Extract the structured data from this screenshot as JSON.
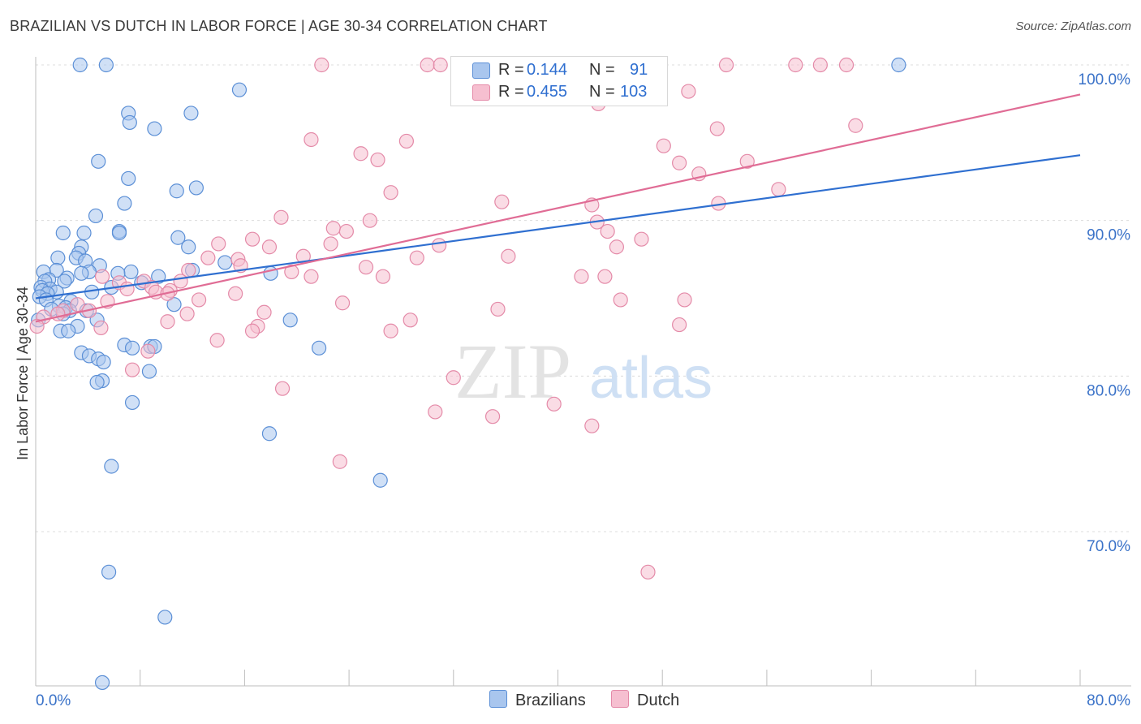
{
  "header": {
    "title": "BRAZILIAN VS DUTCH IN LABOR FORCE | AGE 30-34 CORRELATION CHART",
    "source": "Source: ZipAtlas.com"
  },
  "legend": {
    "rows": [
      {
        "r_label": "R =",
        "r_value": "0.144",
        "n_label": "N =",
        "n_value": "91"
      },
      {
        "r_label": "R =",
        "r_value": "0.455",
        "n_label": "N =",
        "n_value": "103"
      }
    ]
  },
  "watermark": {
    "zip": "ZIP",
    "atlas": "atlas"
  },
  "colors": {
    "brazilians_fill": "#a9c6ee",
    "brazilians_stroke": "#5b8fd6",
    "brazilians_line": "#2f6fd0",
    "dutch_fill": "#f6bfd0",
    "dutch_stroke": "#e48aa8",
    "dutch_line": "#e06c95",
    "tick_label": "#3a72c8"
  },
  "chart_data": {
    "type": "scatter",
    "title": "BRAZILIAN VS DUTCH IN LABOR FORCE | AGE 30-34 CORRELATION CHART",
    "xlabel": "",
    "ylabel": "In Labor Force | Age 30-34",
    "xlim": [
      0,
      80
    ],
    "ylim": [
      60,
      102
    ],
    "x_ticks": [
      "0.0%",
      "80.0%"
    ],
    "y_ticks": [
      {
        "value": 70,
        "label": "70.0%"
      },
      {
        "value": 80,
        "label": "80.0%"
      },
      {
        "value": 90,
        "label": "90.0%"
      },
      {
        "value": 100,
        "label": "100.0%"
      }
    ],
    "grid": true,
    "legend_position": "top-center",
    "series": [
      {
        "name": "Brazilians",
        "r": 0.144,
        "n": 91,
        "trend": {
          "x": [
            0,
            80
          ],
          "y": [
            85.0,
            94.2
          ]
        },
        "points": [
          [
            3.4,
            100
          ],
          [
            5.4,
            100
          ],
          [
            66.1,
            100
          ],
          [
            15.6,
            98.4
          ],
          [
            7.1,
            96.9
          ],
          [
            11.9,
            96.9
          ],
          [
            7.2,
            96.3
          ],
          [
            9.1,
            95.9
          ],
          [
            4.8,
            93.8
          ],
          [
            7.1,
            92.7
          ],
          [
            12.3,
            92.1
          ],
          [
            10.8,
            91.9
          ],
          [
            6.8,
            91.1
          ],
          [
            4.6,
            90.3
          ],
          [
            6.4,
            89.3
          ],
          [
            6.4,
            89.2
          ],
          [
            2.1,
            89.2
          ],
          [
            3.7,
            89.2
          ],
          [
            10.9,
            88.9
          ],
          [
            11.7,
            88.3
          ],
          [
            3.5,
            88.3
          ],
          [
            3.3,
            87.9
          ],
          [
            1.7,
            87.6
          ],
          [
            3.1,
            87.6
          ],
          [
            3.8,
            87.4
          ],
          [
            14.5,
            87.3
          ],
          [
            4.9,
            87.1
          ],
          [
            1.6,
            86.8
          ],
          [
            12.0,
            86.8
          ],
          [
            0.6,
            86.7
          ],
          [
            4.1,
            86.7
          ],
          [
            7.3,
            86.7
          ],
          [
            3.5,
            86.6
          ],
          [
            6.3,
            86.6
          ],
          [
            18.0,
            86.6
          ],
          [
            9.4,
            86.4
          ],
          [
            2.4,
            86.3
          ],
          [
            1.0,
            86.2
          ],
          [
            2.2,
            86.1
          ],
          [
            0.7,
            86.1
          ],
          [
            8.1,
            86.0
          ],
          [
            0.4,
            85.7
          ],
          [
            1.1,
            85.6
          ],
          [
            5.8,
            85.7
          ],
          [
            0.5,
            85.5
          ],
          [
            4.3,
            85.4
          ],
          [
            1.6,
            85.4
          ],
          [
            0.9,
            85.3
          ],
          [
            0.3,
            85.1
          ],
          [
            0.8,
            84.9
          ],
          [
            2.7,
            84.8
          ],
          [
            10.6,
            84.6
          ],
          [
            1.8,
            84.5
          ],
          [
            2.3,
            84.4
          ],
          [
            1.2,
            84.3
          ],
          [
            2.6,
            84.2
          ],
          [
            3.9,
            84.2
          ],
          [
            2.1,
            84.0
          ],
          [
            0.2,
            83.6
          ],
          [
            4.7,
            83.6
          ],
          [
            19.5,
            83.6
          ],
          [
            3.2,
            83.2
          ],
          [
            1.9,
            82.9
          ],
          [
            2.5,
            82.9
          ],
          [
            6.8,
            82.0
          ],
          [
            8.8,
            81.9
          ],
          [
            9.1,
            81.9
          ],
          [
            7.4,
            81.8
          ],
          [
            21.7,
            81.8
          ],
          [
            3.5,
            81.5
          ],
          [
            4.1,
            81.3
          ],
          [
            4.8,
            81.1
          ],
          [
            5.2,
            80.9
          ],
          [
            8.7,
            80.3
          ],
          [
            5.1,
            79.7
          ],
          [
            4.7,
            79.6
          ],
          [
            7.4,
            78.3
          ],
          [
            17.9,
            76.3
          ],
          [
            5.8,
            74.2
          ],
          [
            26.4,
            73.3
          ],
          [
            5.6,
            67.4
          ],
          [
            9.9,
            64.5
          ],
          [
            5.1,
            60.3
          ]
        ]
      },
      {
        "name": "Dutch",
        "r": 0.455,
        "n": 103,
        "trend": {
          "x": [
            0,
            80
          ],
          "y": [
            83.5,
            98.1
          ]
        },
        "points": [
          [
            21.9,
            100
          ],
          [
            30.0,
            100
          ],
          [
            31.0,
            100
          ],
          [
            32.4,
            100
          ],
          [
            42.4,
            100
          ],
          [
            52.9,
            100
          ],
          [
            58.2,
            100
          ],
          [
            60.1,
            100
          ],
          [
            62.1,
            100
          ],
          [
            43.1,
            97.5
          ],
          [
            50.0,
            98.3
          ],
          [
            62.8,
            96.1
          ],
          [
            52.2,
            95.9
          ],
          [
            21.1,
            95.2
          ],
          [
            28.4,
            95.1
          ],
          [
            24.9,
            94.3
          ],
          [
            26.2,
            93.9
          ],
          [
            48.1,
            94.8
          ],
          [
            49.3,
            93.7
          ],
          [
            54.5,
            93.8
          ],
          [
            50.8,
            93.0
          ],
          [
            56.9,
            92.0
          ],
          [
            27.2,
            91.8
          ],
          [
            35.7,
            91.2
          ],
          [
            42.6,
            91.0
          ],
          [
            52.3,
            91.1
          ],
          [
            18.8,
            90.2
          ],
          [
            25.6,
            90.0
          ],
          [
            43.0,
            89.9
          ],
          [
            22.8,
            89.5
          ],
          [
            23.8,
            89.3
          ],
          [
            43.8,
            89.3
          ],
          [
            16.6,
            88.8
          ],
          [
            14.0,
            88.5
          ],
          [
            30.9,
            88.4
          ],
          [
            17.9,
            88.3
          ],
          [
            22.6,
            88.5
          ],
          [
            44.5,
            88.3
          ],
          [
            46.4,
            88.8
          ],
          [
            13.2,
            87.6
          ],
          [
            15.5,
            87.5
          ],
          [
            20.5,
            87.7
          ],
          [
            29.2,
            87.6
          ],
          [
            36.2,
            87.7
          ],
          [
            15.7,
            87.1
          ],
          [
            25.3,
            87.0
          ],
          [
            11.7,
            86.8
          ],
          [
            19.6,
            86.7
          ],
          [
            26.6,
            86.4
          ],
          [
            21.1,
            86.4
          ],
          [
            41.8,
            86.4
          ],
          [
            43.6,
            86.4
          ],
          [
            8.3,
            86.1
          ],
          [
            5.1,
            86.4
          ],
          [
            6.4,
            86.0
          ],
          [
            11.1,
            86.1
          ],
          [
            8.9,
            85.7
          ],
          [
            10.3,
            85.5
          ],
          [
            7.0,
            85.6
          ],
          [
            9.2,
            85.4
          ],
          [
            10.1,
            85.3
          ],
          [
            15.3,
            85.3
          ],
          [
            12.5,
            84.9
          ],
          [
            5.5,
            84.8
          ],
          [
            44.8,
            84.9
          ],
          [
            49.7,
            84.9
          ],
          [
            23.5,
            84.7
          ],
          [
            35.4,
            84.3
          ],
          [
            3.2,
            84.6
          ],
          [
            2.1,
            84.2
          ],
          [
            4.1,
            84.2
          ],
          [
            1.7,
            84.0
          ],
          [
            0.6,
            83.8
          ],
          [
            11.6,
            84.0
          ],
          [
            17.5,
            84.1
          ],
          [
            10.1,
            83.5
          ],
          [
            28.7,
            83.6
          ],
          [
            5.0,
            83.1
          ],
          [
            17.0,
            83.2
          ],
          [
            16.6,
            82.9
          ],
          [
            27.2,
            82.9
          ],
          [
            49.3,
            83.3
          ],
          [
            13.9,
            82.3
          ],
          [
            8.6,
            81.6
          ],
          [
            7.4,
            80.4
          ],
          [
            32.0,
            79.9
          ],
          [
            18.9,
            79.2
          ],
          [
            39.7,
            78.2
          ],
          [
            30.6,
            77.7
          ],
          [
            35.0,
            77.4
          ],
          [
            42.6,
            76.8
          ],
          [
            23.3,
            74.5
          ],
          [
            46.9,
            67.4
          ],
          [
            0.1,
            83.2
          ]
        ]
      }
    ]
  },
  "bottom_legend": [
    {
      "label": "Brazilians"
    },
    {
      "label": "Dutch"
    }
  ]
}
